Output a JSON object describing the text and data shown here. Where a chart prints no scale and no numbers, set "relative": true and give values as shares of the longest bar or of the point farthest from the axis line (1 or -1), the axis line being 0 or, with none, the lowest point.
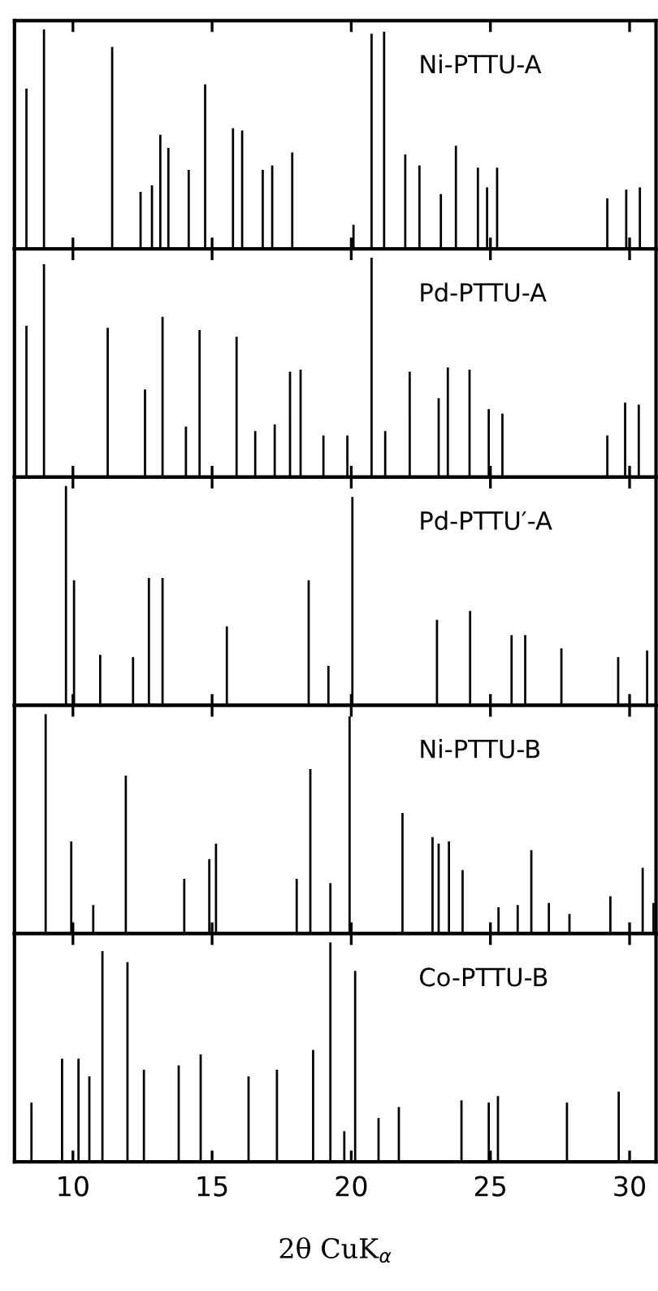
{
  "chart_data": [
    {
      "type": "bar",
      "relative": true,
      "color": "#000000",
      "xlim": [
        7.9,
        30.95
      ],
      "xticks": [
        10,
        15,
        20,
        25,
        30
      ],
      "tick_labels": false,
      "annotations": [
        "Ni-PTTU-A"
      ],
      "x": [
        8.33,
        8.96,
        11.41,
        12.43,
        12.84,
        13.14,
        13.43,
        14.16,
        14.75,
        15.75,
        16.08,
        16.82,
        17.16,
        17.88,
        20.08,
        20.73,
        21.18,
        21.94,
        22.45,
        23.22,
        23.76,
        24.55,
        24.88,
        25.24,
        29.2,
        29.88,
        30.37
      ],
      "values": [
        0.73,
        1.0,
        0.92,
        0.26,
        0.29,
        0.52,
        0.46,
        0.36,
        0.75,
        0.55,
        0.54,
        0.36,
        0.38,
        0.44,
        0.11,
        0.98,
        0.99,
        0.43,
        0.38,
        0.25,
        0.47,
        0.37,
        0.28,
        0.37,
        0.23,
        0.27,
        0.28
      ]
    },
    {
      "type": "bar",
      "relative": true,
      "color": "#000000",
      "xlim": [
        7.9,
        30.95
      ],
      "xticks": [
        10,
        15,
        20,
        25,
        30
      ],
      "tick_labels": false,
      "annotations": [
        "Pd-PTTU-A"
      ],
      "x": [
        8.33,
        8.96,
        11.25,
        12.59,
        13.22,
        14.06,
        14.55,
        15.88,
        16.55,
        17.25,
        17.8,
        18.18,
        19.0,
        19.86,
        20.73,
        21.22,
        22.1,
        23.14,
        23.47,
        24.25,
        24.94,
        25.43,
        29.2,
        29.84,
        30.33
      ],
      "values": [
        0.69,
        0.97,
        0.68,
        0.4,
        0.73,
        0.23,
        0.67,
        0.64,
        0.21,
        0.24,
        0.48,
        0.49,
        0.19,
        0.19,
        1.0,
        0.21,
        0.48,
        0.36,
        0.5,
        0.49,
        0.31,
        0.29,
        0.19,
        0.34,
        0.33
      ]
    },
    {
      "type": "bar",
      "relative": true,
      "color": "#000000",
      "xlim": [
        7.9,
        30.95
      ],
      "xticks": [
        10,
        15,
        20,
        25,
        30
      ],
      "tick_labels": false,
      "annotations": [
        "Pd-PTTU′-A"
      ],
      "x": [
        9.75,
        10.04,
        10.98,
        12.16,
        12.73,
        13.22,
        15.53,
        18.47,
        19.18,
        20.04,
        23.08,
        24.27,
        25.76,
        26.25,
        27.55,
        29.59,
        30.63
      ],
      "values": [
        1.0,
        0.57,
        0.23,
        0.22,
        0.58,
        0.58,
        0.36,
        0.57,
        0.18,
        0.95,
        0.39,
        0.43,
        0.32,
        0.32,
        0.26,
        0.22,
        0.25
      ]
    },
    {
      "type": "bar",
      "relative": true,
      "color": "#000000",
      "xlim": [
        7.9,
        30.95
      ],
      "xticks": [
        10,
        15,
        20,
        25,
        30
      ],
      "tick_labels": false,
      "annotations": [
        "Ni-PTTU-B"
      ],
      "x": [
        9.02,
        9.94,
        10.73,
        11.9,
        14.0,
        14.9,
        15.14,
        18.04,
        18.53,
        19.25,
        19.94,
        21.84,
        22.92,
        23.14,
        23.51,
        24.0,
        25.29,
        25.98,
        26.47,
        27.1,
        27.84,
        29.31,
        30.47,
        30.86
      ],
      "values": [
        1.0,
        0.42,
        0.13,
        0.72,
        0.25,
        0.34,
        0.41,
        0.25,
        0.75,
        0.23,
        0.99,
        0.55,
        0.44,
        0.41,
        0.42,
        0.29,
        0.12,
        0.13,
        0.38,
        0.14,
        0.09,
        0.17,
        0.3,
        0.14
      ]
    },
    {
      "type": "bar",
      "relative": true,
      "color": "#000000",
      "xlim": [
        7.9,
        30.95
      ],
      "xticks": [
        10,
        15,
        20,
        25,
        30
      ],
      "tick_labels": "x",
      "xlabel": "2θ CuK$_{α}$",
      "annotations": [
        "Co-PTTU-B"
      ],
      "x": [
        8.51,
        9.61,
        10.2,
        10.59,
        11.06,
        11.96,
        12.55,
        13.8,
        14.59,
        16.31,
        17.33,
        18.63,
        19.25,
        19.75,
        20.14,
        20.98,
        21.71,
        23.96,
        24.94,
        25.27,
        27.75,
        29.61
      ],
      "values": [
        0.27,
        0.47,
        0.47,
        0.39,
        0.96,
        0.91,
        0.42,
        0.44,
        0.49,
        0.39,
        0.42,
        0.51,
        1.0,
        0.14,
        0.87,
        0.2,
        0.25,
        0.28,
        0.27,
        0.3,
        0.27,
        0.32
      ]
    }
  ]
}
